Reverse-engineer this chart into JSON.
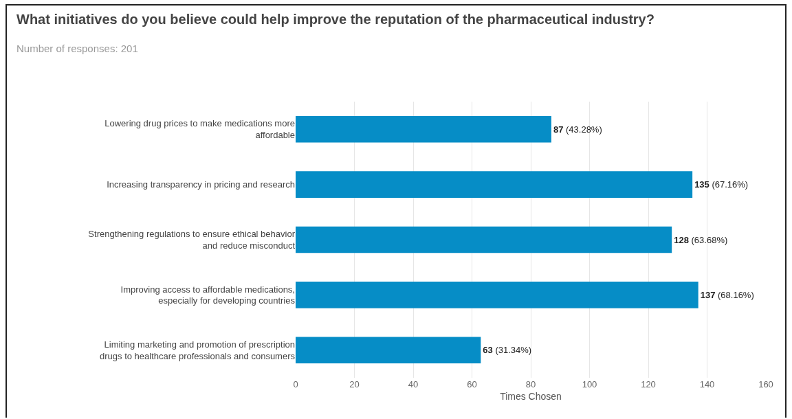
{
  "chart_data": {
    "type": "bar",
    "orientation": "horizontal",
    "title": "What initiatives do you believe could help improve the reputation of the pharmaceutical industry?",
    "subtitle": "Number of responses: 201",
    "xlabel": "Times Chosen",
    "categories": [
      "Lowering drug prices to make medications more affordable",
      "Increasing transparency in pricing and research",
      "Strengthening regulations to ensure ethical behavior and reduce misconduct",
      "Improving access to affordable medications, especially for developing countries",
      "Limiting marketing and promotion of prescription drugs to healthcare professionals and consumers"
    ],
    "values": [
      87,
      135,
      128,
      137,
      63
    ],
    "value_labels": [
      "87 (43.28%)",
      "135 (67.16%)",
      "128 (63.68%)",
      "137 (68.16%)",
      "63 (31.34%)"
    ],
    "color": "#068dc6",
    "xlim": [
      0,
      160
    ],
    "xticks": [
      0,
      20,
      40,
      60,
      80,
      100,
      120,
      140,
      160
    ],
    "grid": "x",
    "legend": false
  }
}
